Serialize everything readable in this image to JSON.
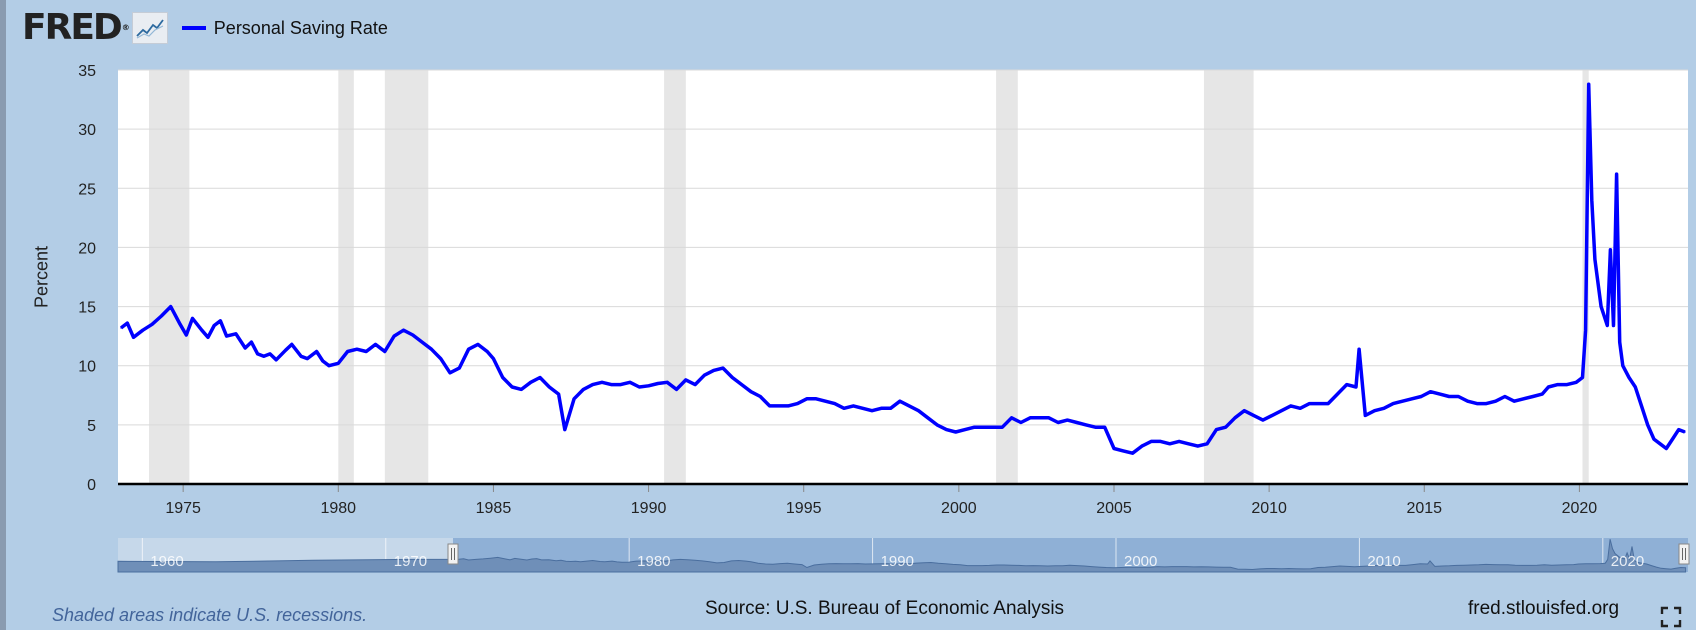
{
  "header": {
    "logo_text": "FRED",
    "logo_reg": "®",
    "legend_label": "Personal Saving Rate"
  },
  "colors": {
    "series": "#0000ff",
    "recession": "#e6e6e6",
    "page_background": "#b3cde6",
    "plot_background": "#ffffff"
  },
  "footer": {
    "note": "Shaded areas indicate U.S. recessions.",
    "source": "Source: U.S. Bureau of Economic Analysis",
    "site": "fred.stlouisfed.org"
  },
  "navigator": {
    "tick_labels": [
      "1960",
      "1970",
      "1980",
      "1990",
      "2000",
      "2010",
      "2020"
    ]
  },
  "chart_data": {
    "type": "line",
    "title": "",
    "xlabel": "",
    "ylabel": "Percent",
    "xlim": [
      1972.9,
      2023.5
    ],
    "ylim": [
      0,
      35
    ],
    "x_ticks": [
      "1975",
      "1980",
      "1985",
      "1990",
      "1995",
      "2000",
      "2005",
      "2010",
      "2015",
      "2020"
    ],
    "y_ticks": [
      "0",
      "5",
      "10",
      "15",
      "20",
      "25",
      "30",
      "35"
    ],
    "grid": true,
    "legend": "top-left",
    "recessions": [
      [
        1973.9,
        1975.2
      ],
      [
        1980.0,
        1980.5
      ],
      [
        1981.5,
        1982.9
      ],
      [
        1990.5,
        1991.2
      ],
      [
        2001.2,
        2001.9
      ],
      [
        2007.9,
        2009.5
      ],
      [
        2020.1,
        2020.3
      ]
    ],
    "series": [
      {
        "name": "Personal Saving Rate",
        "points": [
          [
            1973.0,
            13.2
          ],
          [
            1973.2,
            13.6
          ],
          [
            1973.4,
            12.4
          ],
          [
            1973.7,
            13.0
          ],
          [
            1974.0,
            13.5
          ],
          [
            1974.3,
            14.2
          ],
          [
            1974.6,
            15.0
          ],
          [
            1974.9,
            13.5
          ],
          [
            1975.1,
            12.6
          ],
          [
            1975.3,
            14.0
          ],
          [
            1975.6,
            13.0
          ],
          [
            1975.8,
            12.4
          ],
          [
            1976.0,
            13.4
          ],
          [
            1976.2,
            13.8
          ],
          [
            1976.4,
            12.5
          ],
          [
            1976.7,
            12.7
          ],
          [
            1977.0,
            11.5
          ],
          [
            1977.2,
            12.0
          ],
          [
            1977.4,
            11.0
          ],
          [
            1977.6,
            10.8
          ],
          [
            1977.8,
            11.0
          ],
          [
            1978.0,
            10.5
          ],
          [
            1978.3,
            11.3
          ],
          [
            1978.5,
            11.8
          ],
          [
            1978.8,
            10.8
          ],
          [
            1979.0,
            10.6
          ],
          [
            1979.3,
            11.2
          ],
          [
            1979.5,
            10.4
          ],
          [
            1979.7,
            10.0
          ],
          [
            1980.0,
            10.2
          ],
          [
            1980.3,
            11.2
          ],
          [
            1980.6,
            11.4
          ],
          [
            1980.9,
            11.2
          ],
          [
            1981.2,
            11.8
          ],
          [
            1981.5,
            11.2
          ],
          [
            1981.8,
            12.5
          ],
          [
            1982.1,
            13.0
          ],
          [
            1982.4,
            12.6
          ],
          [
            1982.7,
            12.0
          ],
          [
            1983.0,
            11.4
          ],
          [
            1983.3,
            10.6
          ],
          [
            1983.6,
            9.4
          ],
          [
            1983.9,
            9.8
          ],
          [
            1984.2,
            11.4
          ],
          [
            1984.5,
            11.8
          ],
          [
            1984.8,
            11.2
          ],
          [
            1985.0,
            10.6
          ],
          [
            1985.3,
            9.0
          ],
          [
            1985.6,
            8.2
          ],
          [
            1985.9,
            8.0
          ],
          [
            1986.2,
            8.6
          ],
          [
            1986.5,
            9.0
          ],
          [
            1986.8,
            8.2
          ],
          [
            1987.1,
            7.6
          ],
          [
            1987.3,
            4.6
          ],
          [
            1987.6,
            7.2
          ],
          [
            1987.9,
            8.0
          ],
          [
            1988.2,
            8.4
          ],
          [
            1988.5,
            8.6
          ],
          [
            1988.8,
            8.4
          ],
          [
            1989.1,
            8.4
          ],
          [
            1989.4,
            8.6
          ],
          [
            1989.7,
            8.2
          ],
          [
            1990.0,
            8.3
          ],
          [
            1990.3,
            8.5
          ],
          [
            1990.6,
            8.6
          ],
          [
            1990.9,
            8.0
          ],
          [
            1991.2,
            8.8
          ],
          [
            1991.5,
            8.4
          ],
          [
            1991.8,
            9.2
          ],
          [
            1992.1,
            9.6
          ],
          [
            1992.4,
            9.8
          ],
          [
            1992.7,
            9.0
          ],
          [
            1993.0,
            8.4
          ],
          [
            1993.3,
            7.8
          ],
          [
            1993.6,
            7.4
          ],
          [
            1993.9,
            6.6
          ],
          [
            1994.2,
            6.6
          ],
          [
            1994.5,
            6.6
          ],
          [
            1994.8,
            6.8
          ],
          [
            1995.1,
            7.2
          ],
          [
            1995.4,
            7.2
          ],
          [
            1995.7,
            7.0
          ],
          [
            1996.0,
            6.8
          ],
          [
            1996.3,
            6.4
          ],
          [
            1996.6,
            6.6
          ],
          [
            1996.9,
            6.4
          ],
          [
            1997.2,
            6.2
          ],
          [
            1997.5,
            6.4
          ],
          [
            1997.8,
            6.4
          ],
          [
            1998.1,
            7.0
          ],
          [
            1998.4,
            6.6
          ],
          [
            1998.7,
            6.2
          ],
          [
            1999.0,
            5.6
          ],
          [
            1999.3,
            5.0
          ],
          [
            1999.6,
            4.6
          ],
          [
            1999.9,
            4.4
          ],
          [
            2000.2,
            4.6
          ],
          [
            2000.5,
            4.8
          ],
          [
            2000.8,
            4.8
          ],
          [
            2001.1,
            4.8
          ],
          [
            2001.4,
            4.8
          ],
          [
            2001.7,
            5.6
          ],
          [
            2002.0,
            5.2
          ],
          [
            2002.3,
            5.6
          ],
          [
            2002.6,
            5.6
          ],
          [
            2002.9,
            5.6
          ],
          [
            2003.2,
            5.2
          ],
          [
            2003.5,
            5.4
          ],
          [
            2003.8,
            5.2
          ],
          [
            2004.1,
            5.0
          ],
          [
            2004.4,
            4.8
          ],
          [
            2004.7,
            4.8
          ],
          [
            2005.0,
            3.0
          ],
          [
            2005.3,
            2.8
          ],
          [
            2005.6,
            2.6
          ],
          [
            2005.9,
            3.2
          ],
          [
            2006.2,
            3.6
          ],
          [
            2006.5,
            3.6
          ],
          [
            2006.8,
            3.4
          ],
          [
            2007.1,
            3.6
          ],
          [
            2007.4,
            3.4
          ],
          [
            2007.7,
            3.2
          ],
          [
            2008.0,
            3.4
          ],
          [
            2008.3,
            4.6
          ],
          [
            2008.6,
            4.8
          ],
          [
            2008.9,
            5.6
          ],
          [
            2009.2,
            6.2
          ],
          [
            2009.5,
            5.8
          ],
          [
            2009.8,
            5.4
          ],
          [
            2010.1,
            5.8
          ],
          [
            2010.4,
            6.2
          ],
          [
            2010.7,
            6.6
          ],
          [
            2011.0,
            6.4
          ],
          [
            2011.3,
            6.8
          ],
          [
            2011.6,
            6.8
          ],
          [
            2011.9,
            6.8
          ],
          [
            2012.2,
            7.6
          ],
          [
            2012.5,
            8.4
          ],
          [
            2012.8,
            8.2
          ],
          [
            2012.9,
            11.4
          ],
          [
            2013.1,
            5.8
          ],
          [
            2013.4,
            6.2
          ],
          [
            2013.7,
            6.4
          ],
          [
            2014.0,
            6.8
          ],
          [
            2014.3,
            7.0
          ],
          [
            2014.6,
            7.2
          ],
          [
            2014.9,
            7.4
          ],
          [
            2015.2,
            7.8
          ],
          [
            2015.5,
            7.6
          ],
          [
            2015.8,
            7.4
          ],
          [
            2016.1,
            7.4
          ],
          [
            2016.4,
            7.0
          ],
          [
            2016.7,
            6.8
          ],
          [
            2017.0,
            6.8
          ],
          [
            2017.3,
            7.0
          ],
          [
            2017.6,
            7.4
          ],
          [
            2017.9,
            7.0
          ],
          [
            2018.2,
            7.2
          ],
          [
            2018.5,
            7.4
          ],
          [
            2018.8,
            7.6
          ],
          [
            2019.0,
            8.2
          ],
          [
            2019.3,
            8.4
          ],
          [
            2019.6,
            8.4
          ],
          [
            2019.9,
            8.6
          ],
          [
            2020.1,
            9.0
          ],
          [
            2020.2,
            13.0
          ],
          [
            2020.3,
            33.8
          ],
          [
            2020.4,
            24.0
          ],
          [
            2020.5,
            19.0
          ],
          [
            2020.7,
            15.0
          ],
          [
            2020.9,
            13.4
          ],
          [
            2021.0,
            19.8
          ],
          [
            2021.1,
            13.4
          ],
          [
            2021.2,
            26.2
          ],
          [
            2021.3,
            12.0
          ],
          [
            2021.4,
            10.0
          ],
          [
            2021.6,
            9.0
          ],
          [
            2021.8,
            8.2
          ],
          [
            2022.0,
            6.6
          ],
          [
            2022.2,
            5.0
          ],
          [
            2022.4,
            3.8
          ],
          [
            2022.6,
            3.4
          ],
          [
            2022.8,
            3.0
          ],
          [
            2023.0,
            3.8
          ],
          [
            2023.2,
            4.6
          ],
          [
            2023.4,
            4.4
          ]
        ]
      }
    ]
  }
}
